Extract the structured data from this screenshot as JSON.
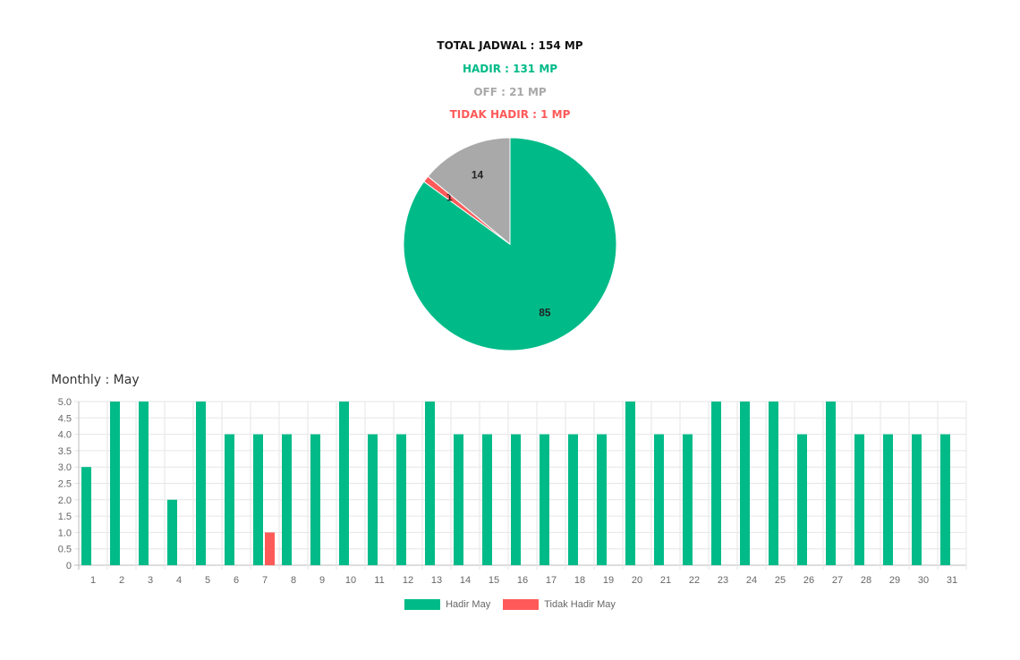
{
  "colors": {
    "hadir": "#00bb88",
    "off": "#a9a9a9",
    "tidak_hadir": "#ff5a5a",
    "total": "#111111",
    "grid": "#e6e6e6",
    "axis_text": "#666666"
  },
  "summary": {
    "total": "TOTAL JADWAL : 154 MP",
    "hadir": "HADIR : 131 MP",
    "off": "OFF : 21 MP",
    "tidak_hadir": "TIDAK HADIR : 1 MP"
  },
  "monthly_title": "Monthly : May",
  "chart_data": [
    {
      "type": "pie",
      "slices": [
        {
          "key": "hadir",
          "value": 85,
          "label": "85"
        },
        {
          "key": "tidak_hadir",
          "value": 1,
          "label": "1"
        },
        {
          "key": "off",
          "value": 14,
          "label": "14"
        }
      ]
    },
    {
      "type": "bar",
      "categories": [
        "1",
        "2",
        "3",
        "4",
        "5",
        "6",
        "7",
        "8",
        "9",
        "10",
        "11",
        "12",
        "13",
        "14",
        "15",
        "16",
        "17",
        "18",
        "19",
        "20",
        "21",
        "22",
        "23",
        "24",
        "25",
        "26",
        "27",
        "28",
        "29",
        "30",
        "31"
      ],
      "series": [
        {
          "name": "Hadir May",
          "key": "hadir",
          "values": [
            3,
            5,
            5,
            2,
            5,
            4,
            4,
            4,
            4,
            5,
            4,
            4,
            5,
            4,
            4,
            4,
            4,
            4,
            4,
            5,
            4,
            4,
            5,
            5,
            5,
            4,
            5,
            4,
            4,
            4,
            4
          ]
        },
        {
          "name": "Tidak Hadir May",
          "key": "tidak_hadir",
          "values": [
            0,
            0,
            0,
            0,
            0,
            0,
            1,
            0,
            0,
            0,
            0,
            0,
            0,
            0,
            0,
            0,
            0,
            0,
            0,
            0,
            0,
            0,
            0,
            0,
            0,
            0,
            0,
            0,
            0,
            0,
            0
          ]
        }
      ],
      "ylim": [
        0,
        5
      ],
      "yticks": [
        "0",
        "0.5",
        "1.0",
        "1.5",
        "2.0",
        "2.5",
        "3.0",
        "3.5",
        "4.0",
        "4.5",
        "5.0"
      ],
      "grid": true,
      "legend": "bottom"
    }
  ]
}
